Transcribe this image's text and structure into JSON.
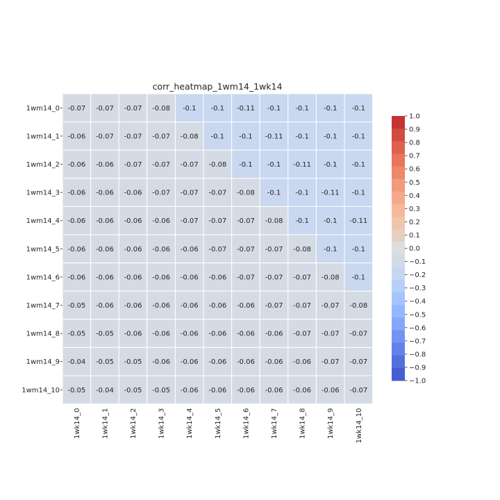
{
  "chart_data": {
    "type": "heatmap",
    "title": "corr_heatmap_1wm14_1wk14",
    "rows": [
      "1wm14_0",
      "1wm14_1",
      "1wm14_2",
      "1wm14_3",
      "1wm14_4",
      "1wm14_5",
      "1wm14_6",
      "1wm14_7",
      "1wm14_8",
      "1wm14_9",
      "1wm14_10"
    ],
    "columns": [
      "1wk14_0",
      "1wk14_1",
      "1wk14_2",
      "1wk14_3",
      "1wk14_4",
      "1wk14_5",
      "1wk14_6",
      "1wk14_7",
      "1wk14_8",
      "1wk14_9",
      "1wk14_10"
    ],
    "values": [
      [
        -0.07,
        -0.07,
        -0.07,
        -0.08,
        -0.1,
        -0.1,
        -0.11,
        -0.1,
        -0.1,
        -0.1,
        -0.1
      ],
      [
        -0.06,
        -0.07,
        -0.07,
        -0.07,
        -0.08,
        -0.1,
        -0.1,
        -0.11,
        -0.1,
        -0.1,
        -0.1
      ],
      [
        -0.06,
        -0.06,
        -0.07,
        -0.07,
        -0.07,
        -0.08,
        -0.1,
        -0.1,
        -0.11,
        -0.1,
        -0.1
      ],
      [
        -0.06,
        -0.06,
        -0.06,
        -0.07,
        -0.07,
        -0.07,
        -0.08,
        -0.1,
        -0.1,
        -0.11,
        -0.1
      ],
      [
        -0.06,
        -0.06,
        -0.06,
        -0.06,
        -0.07,
        -0.07,
        -0.07,
        -0.08,
        -0.1,
        -0.1,
        -0.11
      ],
      [
        -0.06,
        -0.06,
        -0.06,
        -0.06,
        -0.06,
        -0.07,
        -0.07,
        -0.07,
        -0.08,
        -0.1,
        -0.1
      ],
      [
        -0.06,
        -0.06,
        -0.06,
        -0.06,
        -0.06,
        -0.06,
        -0.07,
        -0.07,
        -0.07,
        -0.08,
        -0.1
      ],
      [
        -0.05,
        -0.06,
        -0.06,
        -0.06,
        -0.06,
        -0.06,
        -0.06,
        -0.07,
        -0.07,
        -0.07,
        -0.08
      ],
      [
        -0.05,
        -0.05,
        -0.06,
        -0.06,
        -0.06,
        -0.06,
        -0.06,
        -0.06,
        -0.07,
        -0.07,
        -0.07
      ],
      [
        -0.04,
        -0.05,
        -0.05,
        -0.06,
        -0.06,
        -0.06,
        -0.06,
        -0.06,
        -0.06,
        -0.07,
        -0.07
      ],
      [
        -0.05,
        -0.04,
        -0.05,
        -0.05,
        -0.06,
        -0.06,
        -0.06,
        -0.06,
        -0.06,
        -0.06,
        -0.07
      ]
    ],
    "vmin": -1.0,
    "vmax": 1.0,
    "colormap": "coolwarm",
    "colorbar_ticks": [
      "1.0",
      "0.9",
      "0.8",
      "0.7",
      "0.6",
      "0.5",
      "0.4",
      "0.3",
      "0.2",
      "0.1",
      "0.0",
      "−0.1",
      "−0.2",
      "−0.3",
      "−0.4",
      "−0.5",
      "−0.6",
      "−0.7",
      "−0.8",
      "−0.9",
      "−1.0"
    ],
    "colorbar_colors": [
      "#c53334",
      "#d24b40",
      "#de614d",
      "#e7745b",
      "#ef886b",
      "#f39a7b",
      "#f6a889",
      "#f5b89c",
      "#efc5ad",
      "#e7cfc0",
      "#dcdddd",
      "#d4dbe6",
      "#c7d7f0",
      "#b7cff9",
      "#a6c4fe",
      "#95b7ff",
      "#84a7fc",
      "#7295f4",
      "#6282ea",
      "#5470de",
      "#465ecf"
    ],
    "cell_color_near_zero": "#d5dbe5",
    "cell_color_tenth": "#c9d7f0",
    "colorbar_position": "right",
    "grid": false
  }
}
